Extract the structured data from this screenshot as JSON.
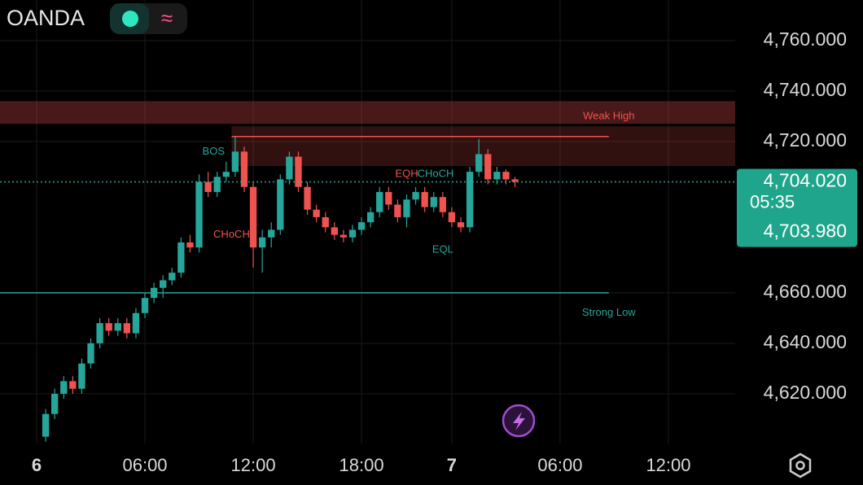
{
  "header": {
    "broker": "OANDA"
  },
  "chart_data": {
    "type": "candlestick",
    "colors": {
      "up": "#26a69a",
      "down": "#ef5350"
    },
    "xlim": [
      -2.03,
      38.7
    ],
    "ylim": [
      4600.3,
      4776.1
    ],
    "xticks": [
      {
        "value": 0,
        "label": "6"
      },
      {
        "value": 6,
        "label": "06:00"
      },
      {
        "value": 12,
        "label": "12:00"
      },
      {
        "value": 18,
        "label": "18:00"
      },
      {
        "value": 23,
        "label": "7"
      },
      {
        "value": 29,
        "label": "06:00"
      },
      {
        "value": 35,
        "label": "12:00"
      }
    ],
    "yticks": [
      {
        "value": 4620,
        "label": "4,620.000"
      },
      {
        "value": 4640,
        "label": "4,640.000"
      },
      {
        "value": 4660,
        "label": "4,660.000"
      },
      {
        "value": 4720,
        "label": "4,720.000"
      },
      {
        "value": 4740,
        "label": "4,740.000"
      },
      {
        "value": 4760,
        "label": "4,760.000"
      }
    ],
    "grid": true,
    "x": [
      0.5,
      1,
      1.5,
      2,
      2.5,
      3,
      3.5,
      4,
      4.5,
      5,
      5.5,
      6,
      6.5,
      7,
      7.5,
      8,
      8.5,
      9,
      9.5,
      10,
      10.5,
      11,
      11.5,
      12,
      12.5,
      13,
      13.5,
      14,
      14.5,
      15,
      15.5,
      16,
      16.5,
      17,
      17.5,
      18,
      18.5,
      19,
      19.5,
      20,
      20.5,
      21,
      21.5,
      22,
      22.5,
      23,
      23.5,
      24,
      24.5,
      25,
      25.5,
      26,
      26.5
    ],
    "open": [
      4603,
      4612,
      4620,
      4625,
      4622,
      4632,
      4640,
      4648,
      4645,
      4648,
      4644,
      4652,
      4658,
      4662,
      4665,
      4668,
      4680,
      4678,
      4704,
      4700,
      4706,
      4708,
      4716,
      4702,
      4678,
      4682,
      4685,
      4705,
      4714,
      4702,
      4693,
      4690,
      4686,
      4683,
      4682,
      4685,
      4688,
      4692,
      4700,
      4695,
      4690,
      4697,
      4700,
      4694,
      4698,
      4692,
      4688,
      4686,
      4708,
      4715,
      4705,
      4708,
      4705
    ],
    "high": [
      4614,
      4622,
      4627,
      4627,
      4634,
      4642,
      4650,
      4650,
      4650,
      4650,
      4654,
      4660,
      4664,
      4667,
      4670,
      4682,
      4683,
      4707,
      4708,
      4708,
      4712,
      4722,
      4718,
      4704,
      4685,
      4688,
      4707,
      4716,
      4716,
      4704,
      4695,
      4692,
      4688,
      4685,
      4687,
      4690,
      4694,
      4702,
      4702,
      4697,
      4699,
      4702,
      4702,
      4700,
      4700,
      4694,
      4690,
      4710,
      4721,
      4717,
      4710,
      4709,
      4706
    ],
    "low": [
      4601,
      4610,
      4618,
      4620,
      4620,
      4630,
      4638,
      4643,
      4643,
      4642,
      4642,
      4650,
      4656,
      4658,
      4663,
      4666,
      4676,
      4676,
      4698,
      4698,
      4704,
      4706,
      4700,
      4670,
      4668,
      4678,
      4683,
      4703,
      4700,
      4691,
      4688,
      4684,
      4681,
      4680,
      4680,
      4683,
      4686,
      4690,
      4693,
      4688,
      4686,
      4695,
      4692,
      4692,
      4690,
      4686,
      4684,
      4684,
      4706,
      4703,
      4703,
      4703,
      4702
    ],
    "close": [
      4612,
      4620,
      4625,
      4622,
      4632,
      4640,
      4648,
      4645,
      4648,
      4644,
      4652,
      4658,
      4662,
      4665,
      4668,
      4680,
      4678,
      4704,
      4700,
      4706,
      4708,
      4716,
      4702,
      4678,
      4682,
      4685,
      4705,
      4714,
      4702,
      4693,
      4690,
      4686,
      4683,
      4682,
      4685,
      4688,
      4692,
      4700,
      4695,
      4690,
      4697,
      4700,
      4694,
      4698,
      4692,
      4688,
      4686,
      4708,
      4715,
      4705,
      4708,
      4705,
      4704.02
    ],
    "zones": [
      {
        "x": [
          -2.03,
          38.7
        ],
        "y": [
          4727,
          4736
        ]
      },
      {
        "x": [
          10.8,
          38.7
        ],
        "y": [
          4710.3,
          4726
        ]
      }
    ],
    "levels": [
      {
        "value": 4722,
        "x": [
          10.8,
          31.7
        ],
        "color": "#ef5350"
      },
      {
        "value": 4660,
        "x": [
          -2.03,
          31.7
        ],
        "color": "#26a69a"
      }
    ],
    "annotations": [
      {
        "text": "Weak High",
        "x": 31.7,
        "y": 4730,
        "color": "#ef5350"
      },
      {
        "text": "Strong Low",
        "x": 31.7,
        "y": 4652,
        "color": "#26a69a"
      },
      {
        "text": "BOS",
        "x": 9.8,
        "y": 4716,
        "color": "#26a69a"
      },
      {
        "text": "CHoCH",
        "x": 10.8,
        "y": 4683,
        "color": "#ef5350"
      },
      {
        "text": "EQH",
        "x": 20.5,
        "y": 4707,
        "color": "#ef5350"
      },
      {
        "text": "CHoCH",
        "x": 22.1,
        "y": 4707,
        "color": "#26a69a"
      },
      {
        "text": "EQL",
        "x": 22.5,
        "y": 4677,
        "color": "#26a69a"
      }
    ],
    "last_price": {
      "value": 4704.02,
      "label": "4,704.020"
    },
    "countdown": "05:35",
    "bid_label": "4,703.980"
  }
}
